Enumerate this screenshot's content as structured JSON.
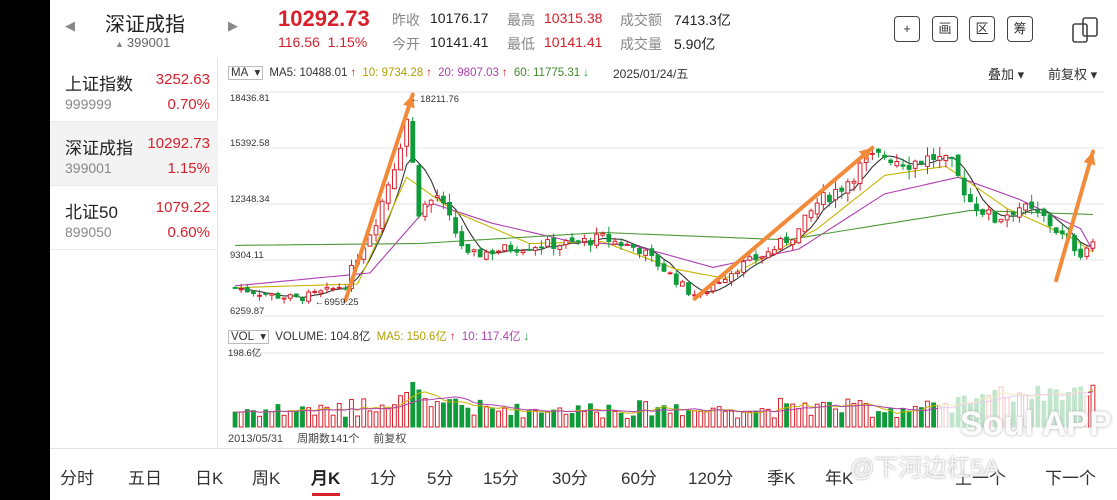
{
  "header": {
    "title": "深证成指",
    "code": "399001",
    "price": "10292.73",
    "change": "116.56",
    "change_pct": "1.15%",
    "stats": [
      {
        "label": "昨收",
        "value": "10176.17"
      },
      {
        "label": "最高",
        "value": "10315.38"
      },
      {
        "label": "成交额",
        "value": "7413.3亿"
      },
      {
        "label": "今开",
        "value": "10141.41"
      },
      {
        "label": "最低",
        "value": "10141.41"
      },
      {
        "label": "成交量",
        "value": "5.90亿"
      }
    ],
    "tools": [
      "+",
      "画",
      "区",
      "筹"
    ]
  },
  "sidebar": {
    "items": [
      {
        "name": "上证指数",
        "code": "999999",
        "price": "3252.63",
        "pct": "0.70%"
      },
      {
        "name": "深证成指",
        "code": "399001",
        "price": "10292.73",
        "pct": "1.15%"
      },
      {
        "name": "北证50",
        "code": "899050",
        "price": "1079.22",
        "pct": "0.60%"
      }
    ]
  },
  "chart_header": {
    "ma_label": "MA",
    "ma5": "MA5: 10488.01",
    "ma10": "10: 9734.28",
    "ma20": "20: 9807.03",
    "ma60": "60: 11775.31",
    "date": "2025/01/24/五",
    "option1": "叠加",
    "option2": "前复权"
  },
  "vol_header": {
    "label": "VOL",
    "volume": "VOLUME: 104.8亿",
    "ma5": "MA5: 150.6亿",
    "ma10": "10: 117.4亿"
  },
  "footer": {
    "start_date": "2013/05/31",
    "period_count": "周期数141个",
    "adjust": "前复权"
  },
  "tabs": [
    "分时",
    "五日",
    "日K",
    "周K",
    "月K",
    "1分",
    "5分",
    "15分",
    "30分",
    "60分",
    "120分",
    "季K",
    "年K",
    "上一个",
    "下一个"
  ],
  "active_tab": "月K",
  "watermark": {
    "app": "Soul APP",
    "handle": "@下河边杠5A"
  },
  "colors": {
    "up": "#d8202b",
    "down": "#0e9b3a",
    "ma5": "#333333",
    "ma10": "#c6b600",
    "ma20": "#b03fb0",
    "ma60": "#4f9a3a",
    "arrow": "#f28a3a"
  },
  "chart_data": {
    "type": "candlestick",
    "title": "深证成指 月K",
    "ylim": [
      6259.87,
      18436.81
    ],
    "y_ticks": [
      "18436.81",
      "15392.58",
      "12348.34",
      "9304.11",
      "6259.87"
    ],
    "annotations": [
      {
        "text": "18211.76",
        "kind": "high"
      },
      {
        "text": "6959.25",
        "kind": "low"
      }
    ],
    "volume_ylim": [
      0,
      198.6
    ],
    "volume_tick": "198.6亿",
    "period_count": 141,
    "anchors": [
      [
        0,
        7800
      ],
      [
        6,
        7400
      ],
      [
        10,
        7200
      ],
      [
        15,
        7600
      ],
      [
        18,
        8000
      ],
      [
        20,
        9500
      ],
      [
        23,
        11500
      ],
      [
        26,
        14500
      ],
      [
        28,
        17000
      ],
      [
        30,
        12000
      ],
      [
        33,
        12800
      ],
      [
        36,
        10800
      ],
      [
        38,
        9500
      ],
      [
        42,
        9800
      ],
      [
        48,
        10100
      ],
      [
        55,
        10200
      ],
      [
        60,
        10500
      ],
      [
        66,
        9900
      ],
      [
        70,
        8800
      ],
      [
        74,
        7600
      ],
      [
        76,
        7300
      ],
      [
        78,
        8000
      ],
      [
        82,
        8900
      ],
      [
        87,
        9700
      ],
      [
        92,
        10900
      ],
      [
        95,
        12400
      ],
      [
        99,
        13300
      ],
      [
        103,
        14700
      ],
      [
        106,
        15000
      ],
      [
        110,
        14600
      ],
      [
        114,
        14900
      ],
      [
        117,
        14400
      ],
      [
        120,
        12500
      ],
      [
        124,
        11500
      ],
      [
        128,
        12200
      ],
      [
        132,
        11600
      ],
      [
        135,
        10600
      ],
      [
        138,
        9700
      ],
      [
        140,
        10292.73
      ]
    ],
    "ma_anchors": {
      "ma10": [
        [
          0,
          7800
        ],
        [
          20,
          8000
        ],
        [
          28,
          13800
        ],
        [
          36,
          11900
        ],
        [
          48,
          10200
        ],
        [
          60,
          10300
        ],
        [
          72,
          8800
        ],
        [
          80,
          8300
        ],
        [
          95,
          11000
        ],
        [
          106,
          13900
        ],
        [
          116,
          14400
        ],
        [
          126,
          12100
        ],
        [
          136,
          10600
        ],
        [
          140,
          9734.28
        ]
      ],
      "ma20": [
        [
          0,
          7900
        ],
        [
          22,
          8600
        ],
        [
          32,
          12400
        ],
        [
          42,
          11300
        ],
        [
          55,
          10300
        ],
        [
          65,
          10100
        ],
        [
          78,
          8900
        ],
        [
          92,
          9900
        ],
        [
          106,
          12900
        ],
        [
          118,
          13800
        ],
        [
          128,
          12600
        ],
        [
          138,
          11000
        ],
        [
          140,
          9807.03
        ]
      ],
      "ma60": [
        [
          0,
          10100
        ],
        [
          30,
          10200
        ],
        [
          60,
          10800
        ],
        [
          90,
          10400
        ],
        [
          120,
          12000
        ],
        [
          140,
          11775.31
        ]
      ]
    },
    "arrows": [
      {
        "from": [
          18,
          7100
        ],
        "to": [
          29,
          18300
        ]
      },
      {
        "from": [
          75,
          7200
        ],
        "to": [
          104,
          15400
        ]
      },
      {
        "from": [
          134,
          8200
        ],
        "to": [
          140,
          15200
        ]
      }
    ]
  }
}
